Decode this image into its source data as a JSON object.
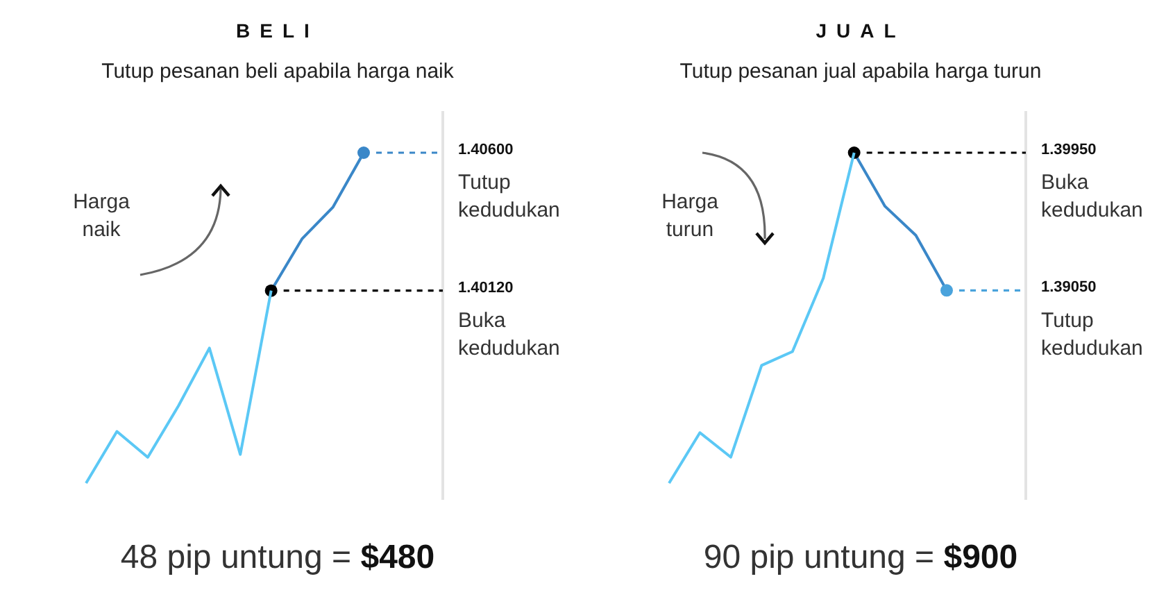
{
  "chart_data": [
    {
      "type": "line",
      "title": "BELI",
      "subtitle": "Tutup pesanan beli apabila harga naik",
      "tick_labels": false,
      "line_style": "solid",
      "categories": [
        null,
        null,
        null,
        null,
        null,
        null,
        null,
        null,
        null,
        null
      ],
      "series": [
        {
          "color": "#5bc8f5",
          "values": [
            1.3945,
            1.3963,
            1.3954,
            1.3972,
            1.3992,
            1.3955,
            1.4012,
            null,
            null,
            null
          ]
        },
        {
          "color": "#3a87c8",
          "values": [
            null,
            null,
            null,
            null,
            null,
            null,
            1.4012,
            1.403,
            1.4041,
            1.406
          ],
          "colors": [
            null,
            null,
            null,
            null,
            null,
            null,
            "#000000",
            null,
            null,
            "#3a87c8"
          ],
          "value_labels": [
            null,
            null,
            null,
            null,
            null,
            null,
            "1.40120",
            null,
            null,
            "1.40600"
          ]
        }
      ],
      "annotations": [
        "Harga naik",
        "Tutup kedudukan",
        "Buka kedudukan",
        "48 pip untung = $480"
      ]
    },
    {
      "type": "line",
      "title": "JUAL",
      "subtitle": "Tutup pesanan jual apabila harga turun",
      "tick_labels": false,
      "line_style": "solid",
      "categories": [
        null,
        null,
        null,
        null,
        null,
        null,
        null,
        null,
        null,
        null
      ],
      "series": [
        {
          "color": "#5bc8f5",
          "values": [
            1.3779,
            1.3812,
            1.3796,
            1.3856,
            1.3865,
            1.3913,
            1.3995,
            null,
            null,
            null
          ]
        },
        {
          "color": "#3a87c8",
          "values": [
            null,
            null,
            null,
            null,
            null,
            null,
            1.3995,
            1.396,
            1.3941,
            1.3905
          ],
          "colors": [
            null,
            null,
            null,
            null,
            null,
            null,
            "#000000",
            null,
            null,
            "#4aa3dc"
          ],
          "value_labels": [
            null,
            null,
            null,
            null,
            null,
            null,
            "1.39950",
            null,
            null,
            "1.39050"
          ]
        }
      ],
      "annotations": [
        "Harga turun",
        "Buka kedudukan",
        "Tutup kedudukan",
        "90 pip untung = $900"
      ]
    }
  ]
}
